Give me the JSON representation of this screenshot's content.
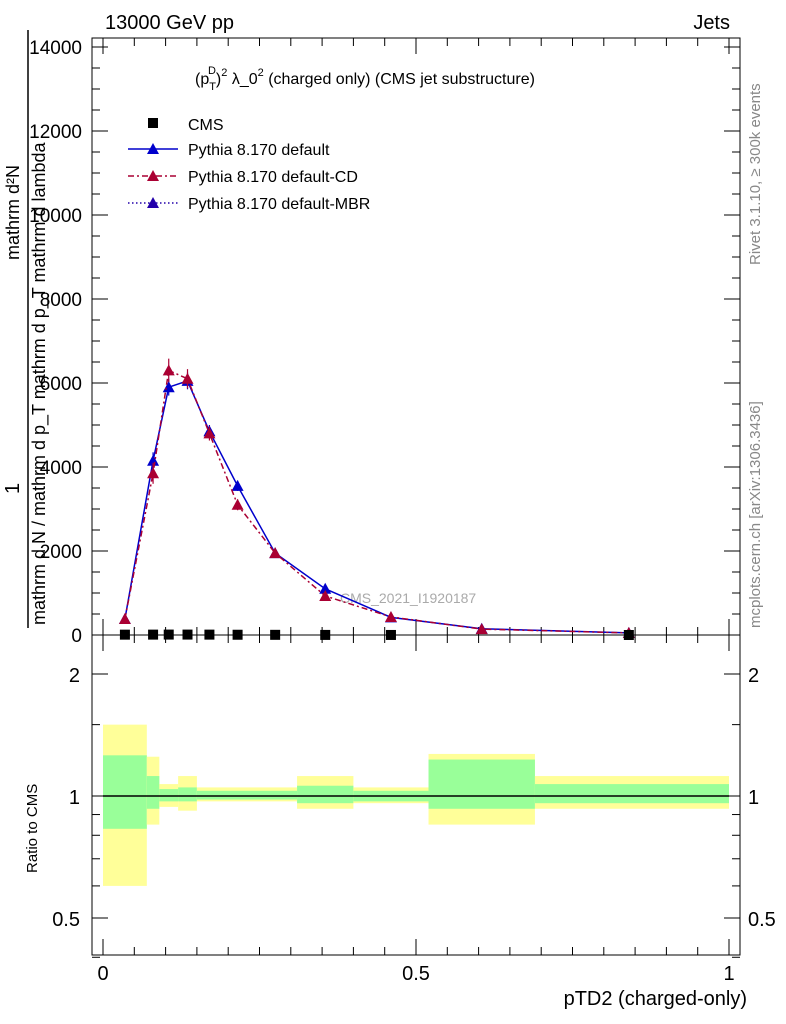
{
  "header": {
    "left": "13000 GeV pp",
    "right": "Jets"
  },
  "side_labels": {
    "rivet": "Rivet 3.1.10, ≥ 300k events",
    "mcplots": "mcplots.cern.ch [arXiv:1306.3436]"
  },
  "y_axis_label": {
    "numerator": "mathrm d²N",
    "fraction_one": "1",
    "denominator": "mathrm d N / mathrm d p_T mathrm d p_T mathrm d lambda"
  },
  "watermark": "CMS_2021_I1920187",
  "ratio_ylabel": "Ratio to CMS",
  "colors": {
    "cms": "#000000",
    "default": "#0000cc",
    "cd": "#aa0033",
    "mbr": "#2200aa",
    "band_inner": "#99ff99",
    "band_outer": "#ffff99"
  },
  "chart_data": [
    {
      "type": "line",
      "title": "(p_T^D)^2 λ_0^2 (charged only) (CMS jet substructure)",
      "title_parts": {
        "p": "(p",
        "sub": "T",
        "sup": "D",
        "close": ")",
        "sq": "2",
        "lam": " λ_0",
        "rest": " (charged only) (CMS jet substructure)"
      },
      "xlabel": "pTD2 (charged-only)",
      "xlim": [
        0,
        1
      ],
      "ylim": [
        0,
        14000
      ],
      "yticks": [
        0,
        2000,
        4000,
        6000,
        8000,
        10000,
        12000,
        14000
      ],
      "ytick_labels": [
        "0",
        "2000",
        "4000",
        "6000",
        "8000",
        "10000",
        "12000",
        "14000"
      ],
      "xtick_labels": [
        "0",
        "0.5",
        "1"
      ],
      "legend": [
        "CMS",
        "Pythia 8.170 default",
        "Pythia 8.170 default-CD",
        "Pythia 8.170 default-MBR"
      ],
      "legend_position": "top-left",
      "series": [
        {
          "name": "CMS",
          "x": [
            0.035,
            0.08,
            0.105,
            0.135,
            0.17,
            0.215,
            0.275,
            0.355,
            0.46,
            0.84
          ],
          "y": [
            8,
            9,
            10,
            10,
            9,
            6,
            4,
            2,
            1,
            0.2
          ]
        },
        {
          "name": "Pythia 8.170 default",
          "x": [
            0.035,
            0.08,
            0.105,
            0.135,
            0.17,
            0.215,
            0.275,
            0.355,
            0.46,
            0.605,
            0.84
          ],
          "y": [
            380,
            4150,
            5900,
            6050,
            4850,
            3550,
            1950,
            1100,
            420,
            150,
            50
          ],
          "yerr": [
            60,
            200,
            200,
            200,
            150,
            120,
            80,
            60,
            30,
            20,
            10
          ]
        },
        {
          "name": "Pythia 8.170 default-CD",
          "x": [
            0.035,
            0.08,
            0.105,
            0.135,
            0.17,
            0.215,
            0.275,
            0.355,
            0.46,
            0.605,
            0.84
          ],
          "y": [
            380,
            3850,
            6300,
            6100,
            4800,
            3100,
            1950,
            930,
            430,
            140,
            50
          ],
          "yerr": [
            60,
            250,
            280,
            230,
            170,
            130,
            80,
            60,
            30,
            20,
            10
          ]
        },
        {
          "name": "Pythia 8.170 default-MBR",
          "x": [],
          "y": []
        }
      ]
    },
    {
      "type": "area",
      "ylabel": "Ratio to CMS",
      "xlim": [
        0,
        1
      ],
      "ylim": [
        0.3,
        2.3
      ],
      "yscale": "log",
      "ytick_labels": [
        "0.5",
        "1",
        "2"
      ],
      "yticks": [
        0.5,
        1,
        2
      ],
      "reference_line": 1,
      "bins": [
        {
          "x0": 0.0,
          "x1": 0.07,
          "inner": [
            0.83,
            1.26
          ],
          "outer": [
            0.6,
            1.5
          ]
        },
        {
          "x0": 0.07,
          "x1": 0.09,
          "inner": [
            0.93,
            1.12
          ],
          "outer": [
            0.85,
            1.25
          ]
        },
        {
          "x0": 0.09,
          "x1": 0.12,
          "inner": [
            0.97,
            1.04
          ],
          "outer": [
            0.94,
            1.07
          ]
        },
        {
          "x0": 0.12,
          "x1": 0.15,
          "inner": [
            0.97,
            1.05
          ],
          "outer": [
            0.92,
            1.12
          ]
        },
        {
          "x0": 0.15,
          "x1": 0.31,
          "inner": [
            0.98,
            1.03
          ],
          "outer": [
            0.97,
            1.05
          ]
        },
        {
          "x0": 0.31,
          "x1": 0.4,
          "inner": [
            0.96,
            1.06
          ],
          "outer": [
            0.93,
            1.12
          ]
        },
        {
          "x0": 0.4,
          "x1": 0.52,
          "inner": [
            0.97,
            1.03
          ],
          "outer": [
            0.96,
            1.05
          ]
        },
        {
          "x0": 0.52,
          "x1": 0.69,
          "inner": [
            0.93,
            1.23
          ],
          "outer": [
            0.85,
            1.27
          ]
        },
        {
          "x0": 0.69,
          "x1": 1.0,
          "inner": [
            0.96,
            1.07
          ],
          "outer": [
            0.93,
            1.12
          ]
        }
      ]
    }
  ]
}
